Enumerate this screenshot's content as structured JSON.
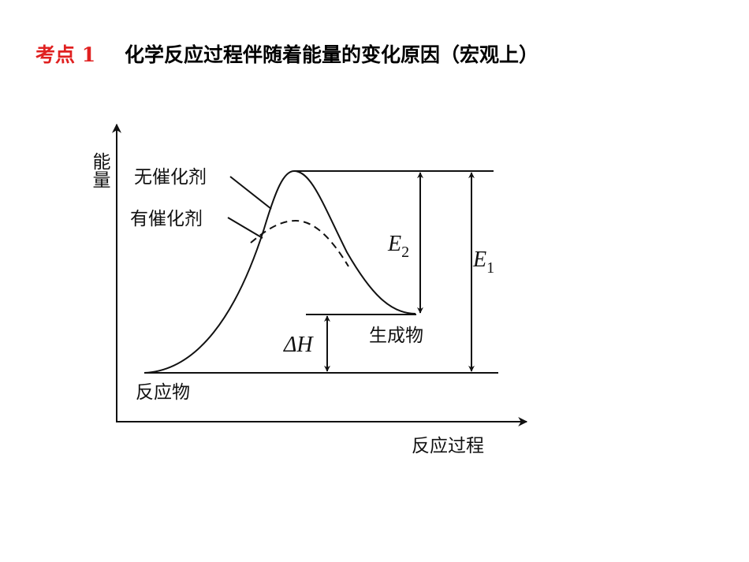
{
  "header": {
    "tag": "考点 1",
    "title": "化学反应过程伴随着能量的变化原因（宏观上）"
  },
  "diagram": {
    "y_axis_label": "能量",
    "x_axis_label": "反应过程",
    "curves": [
      {
        "label": "无催化剂"
      },
      {
        "label": "有催化剂"
      }
    ],
    "levels": {
      "reactants": "反应物",
      "products": "生成物"
    },
    "arrows": [
      {
        "symbol": "E",
        "subscript": "2"
      },
      {
        "symbol": "E",
        "subscript": "1"
      },
      {
        "symbol": "ΔH"
      }
    ]
  }
}
